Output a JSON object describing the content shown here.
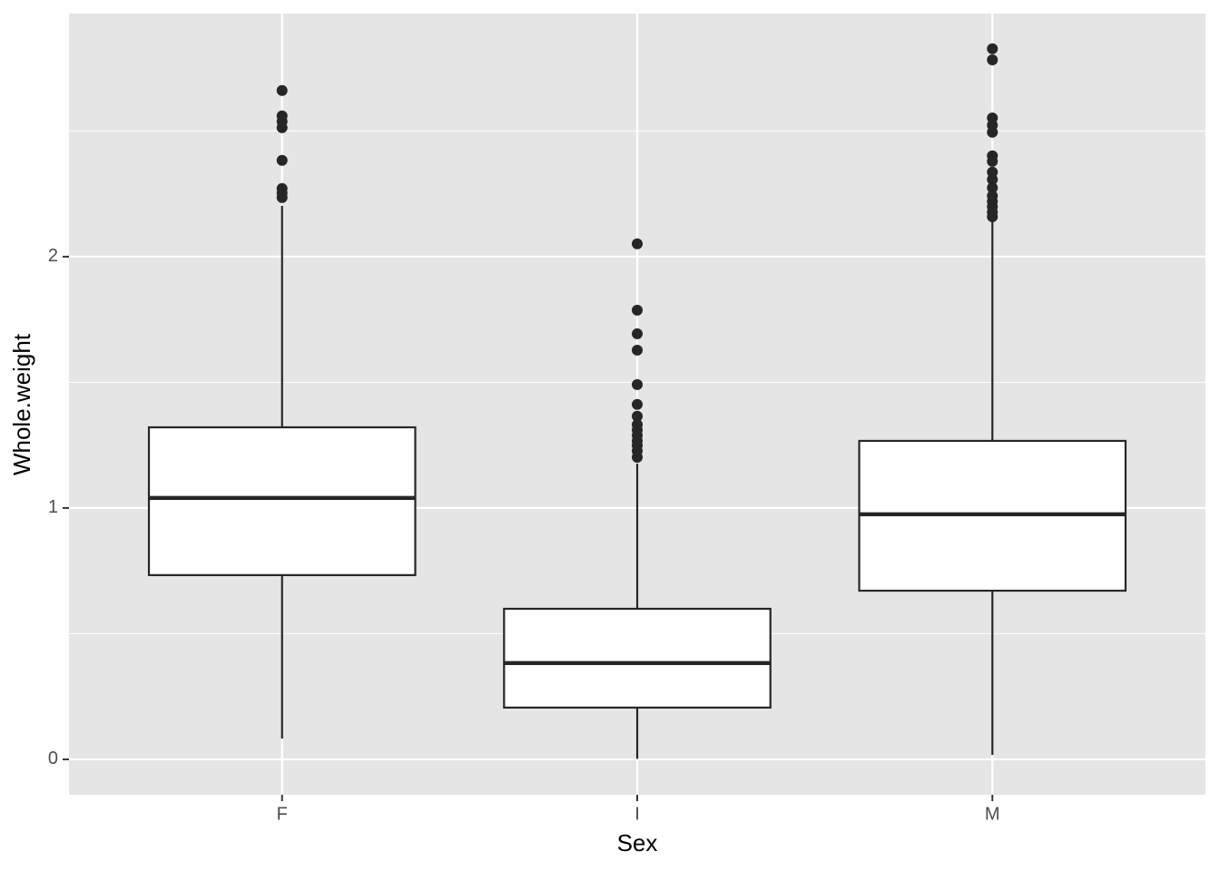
{
  "chart_data": {
    "type": "boxplot",
    "x_label": "Sex",
    "y_label": "Whole.weight",
    "categories": [
      "F",
      "I",
      "M"
    ],
    "boxes": [
      {
        "min": 0.083,
        "q1": 0.733,
        "median": 1.04,
        "q3": 1.321,
        "max": 2.202,
        "outliers": [
          2.661,
          2.56,
          2.538,
          2.513,
          2.383,
          2.271,
          2.253,
          2.235
        ]
      },
      {
        "min": 0.002,
        "q1": 0.206,
        "median": 0.383,
        "q3": 0.599,
        "max": 1.177,
        "outliers": [
          2.051,
          1.787,
          1.693,
          1.628,
          1.491,
          1.412,
          1.365,
          1.332,
          1.31,
          1.289,
          1.267,
          1.249,
          1.227,
          1.202
        ]
      },
      {
        "min": 0.018,
        "q1": 0.671,
        "median": 0.975,
        "q3": 1.267,
        "max": 2.141,
        "outliers": [
          2.827,
          2.783,
          2.552,
          2.523,
          2.495,
          2.401,
          2.379,
          2.336,
          2.307,
          2.274,
          2.242,
          2.22,
          2.199,
          2.177,
          2.159
        ]
      }
    ],
    "box_fill": "#ffffff",
    "line_color": "#262626",
    "panel_color": "#e5e5e5",
    "ylim": [
      -0.141,
      2.967
    ],
    "yticks": [
      0,
      1,
      2
    ],
    "y_minor_ticks": [
      0.5,
      1.5,
      2.5
    ],
    "grid": true
  }
}
